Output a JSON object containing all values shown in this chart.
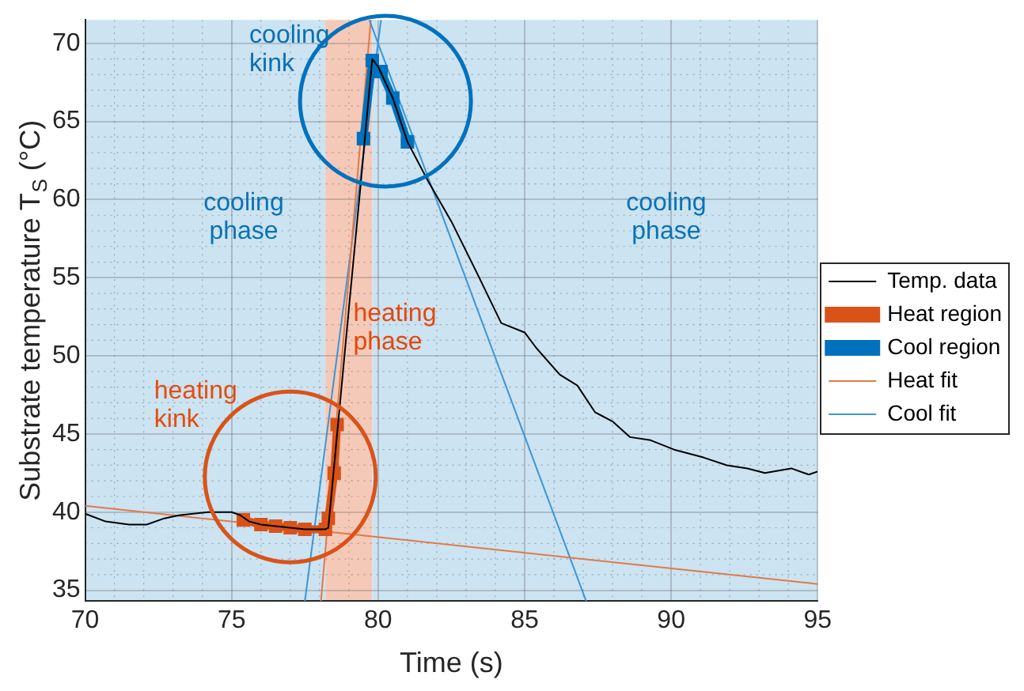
{
  "chart_data": {
    "type": "line",
    "xlabel": "Time (s)",
    "ylabel": "Substrate temperature T$_{S}$ (°C)",
    "xlim": [
      70,
      95
    ],
    "xticks": [
      70,
      75,
      80,
      85,
      90,
      95
    ],
    "ylim": [
      34.3,
      71.5
    ],
    "yticks": [
      35,
      40,
      45,
      50,
      55,
      60,
      65,
      70
    ],
    "grid": true,
    "legend": "right",
    "series": [
      {
        "name": "Temp. data",
        "color": "#000000",
        "marker": "none",
        "x": [
          70.0,
          70.7,
          71.5,
          72.1,
          72.7,
          73.2,
          74.2,
          75.0,
          75.3,
          75.6,
          76.0,
          76.5,
          77.0,
          77.5,
          78.2,
          78.3,
          78.6,
          79.0,
          79.4,
          79.6,
          79.8,
          80.0,
          80.5,
          81.0,
          81.7,
          82.5,
          83.4,
          84.2,
          85.0,
          85.4,
          86.2,
          86.8,
          87.4,
          88.0,
          88.6,
          89.3,
          90.1,
          91.1,
          91.9,
          92.6,
          93.2,
          94.1,
          94.7,
          95.0
        ],
        "values": [
          39.9,
          39.4,
          39.2,
          39.2,
          39.6,
          39.8,
          40.0,
          40.0,
          39.8,
          39.4,
          39.2,
          39.1,
          39.0,
          38.9,
          38.9,
          39.0,
          45.0,
          53.0,
          60.9,
          65.0,
          69.0,
          68.5,
          66.5,
          63.7,
          61.2,
          58.6,
          55.2,
          52.1,
          51.5,
          50.5,
          48.8,
          48.1,
          46.4,
          45.8,
          44.8,
          44.6,
          44.0,
          43.5,
          43.0,
          42.8,
          42.5,
          42.8,
          42.4,
          42.6
        ]
      },
      {
        "name": "Heat region",
        "color": "#d95319",
        "marker": "square",
        "x": [
          75.4,
          76.0,
          76.5,
          77.0,
          77.5,
          78.2,
          78.3,
          78.5,
          78.6
        ],
        "values": [
          39.5,
          39.2,
          39.1,
          39.0,
          38.9,
          38.9,
          39.6,
          42.5,
          45.6
        ]
      },
      {
        "name": "Cool region",
        "color": "#0072bd",
        "marker": "square",
        "x": [
          79.5,
          79.8,
          80.0,
          80.1,
          80.5,
          81.0
        ],
        "values": [
          63.9,
          68.9,
          null,
          68.2,
          66.5,
          63.7
        ]
      },
      {
        "name": "Heat fit",
        "color": "#e07a4a",
        "marker": "none",
        "x": [
          70,
          95
        ],
        "values": [
          40.4,
          35.4
        ]
      },
      {
        "name": "Cool fit",
        "color": "#3d95d6",
        "marker": "none",
        "x": [
          79.7,
          87.1
        ],
        "values": [
          71.5,
          34.3
        ]
      },
      {
        "color": "#e07a4a",
        "marker": "none",
        "x": [
          78.05,
          79.75
        ],
        "values": [
          34.3,
          71.5
        ]
      },
      {
        "color": "#3d95d6",
        "marker": "none",
        "x": [
          77.5,
          80.1
        ],
        "values": [
          34.3,
          71.5
        ]
      }
    ],
    "bands": [
      {
        "axis": "x",
        "from": 70,
        "to": 78.2,
        "label": "cooling phase",
        "color": "#cce3f1"
      },
      {
        "axis": "x",
        "from": 78.2,
        "to": 79.8,
        "label": "heating phase",
        "color": "#f5c9b8"
      },
      {
        "axis": "x",
        "from": 79.8,
        "to": 95,
        "label": "cooling phase",
        "color": "#cce3f1"
      }
    ],
    "annotations": [
      "heating kink",
      "cooling kink"
    ]
  }
}
